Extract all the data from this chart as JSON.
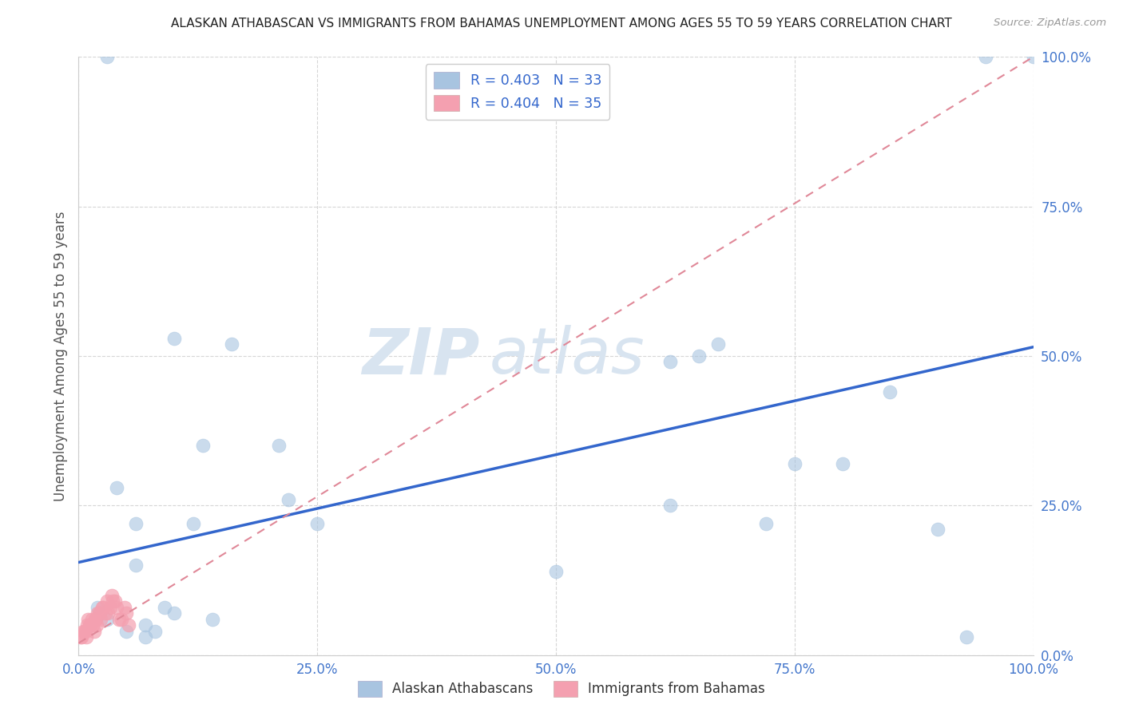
{
  "title": "ALASKAN ATHABASCAN VS IMMIGRANTS FROM BAHAMAS UNEMPLOYMENT AMONG AGES 55 TO 59 YEARS CORRELATION CHART",
  "source": "Source: ZipAtlas.com",
  "ylabel": "Unemployment Among Ages 55 to 59 years",
  "xlim": [
    0,
    1.0
  ],
  "ylim": [
    0,
    1.0
  ],
  "xticks": [
    0.0,
    0.25,
    0.5,
    0.75,
    1.0
  ],
  "yticks": [
    0.0,
    0.25,
    0.5,
    0.75,
    1.0
  ],
  "xticklabels": [
    "0.0%",
    "25.0%",
    "50.0%",
    "75.0%",
    "100.0%"
  ],
  "yticklabels": [
    "0.0%",
    "25.0%",
    "50.0%",
    "75.0%",
    "100.0%"
  ],
  "legend_label1": "Alaskan Athabascans",
  "legend_label2": "Immigrants from Bahamas",
  "R1": "0.403",
  "N1": "33",
  "R2": "0.404",
  "N2": "35",
  "blue_color": "#A8C4E0",
  "pink_color": "#F4A0B0",
  "line_blue": "#3366CC",
  "line_pink": "#E08898",
  "tick_color": "#4477CC",
  "watermark_color": "#D8E4F0",
  "blue_scatter_x": [
    0.04,
    0.1,
    0.02,
    0.07,
    0.13,
    0.06,
    0.03,
    0.05,
    0.16,
    0.06,
    0.09,
    0.12,
    0.21,
    0.25,
    0.22,
    0.5,
    0.62,
    0.62,
    0.65,
    0.72,
    0.8,
    0.85,
    0.9,
    0.93,
    0.95,
    0.14,
    0.03,
    0.07,
    0.08,
    0.1,
    0.67,
    0.75,
    1.0
  ],
  "blue_scatter_y": [
    0.28,
    0.53,
    0.08,
    0.05,
    0.35,
    0.22,
    0.06,
    0.04,
    0.52,
    0.15,
    0.08,
    0.22,
    0.35,
    0.22,
    0.26,
    0.14,
    0.25,
    0.49,
    0.5,
    0.22,
    0.32,
    0.44,
    0.21,
    0.03,
    1.0,
    0.06,
    1.0,
    0.03,
    0.04,
    0.07,
    0.52,
    0.32,
    1.0
  ],
  "pink_scatter_x": [
    0.005,
    0.01,
    0.015,
    0.02,
    0.025,
    0.008,
    0.012,
    0.018,
    0.022,
    0.03,
    0.035,
    0.04,
    0.045,
    0.05,
    0.003,
    0.006,
    0.009,
    0.014,
    0.016,
    0.019,
    0.023,
    0.028,
    0.033,
    0.038,
    0.042,
    0.048,
    0.052,
    0.002,
    0.007,
    0.011,
    0.017,
    0.021,
    0.026,
    0.031,
    0.036
  ],
  "pink_scatter_y": [
    0.04,
    0.06,
    0.05,
    0.07,
    0.08,
    0.03,
    0.05,
    0.06,
    0.07,
    0.09,
    0.1,
    0.08,
    0.06,
    0.07,
    0.03,
    0.04,
    0.05,
    0.06,
    0.04,
    0.05,
    0.06,
    0.07,
    0.08,
    0.09,
    0.06,
    0.08,
    0.05,
    0.03,
    0.04,
    0.05,
    0.06,
    0.07,
    0.08,
    0.07,
    0.09
  ],
  "blue_line_x": [
    0.0,
    1.0
  ],
  "blue_line_y": [
    0.155,
    0.515
  ],
  "pink_line_x": [
    0.0,
    1.0
  ],
  "pink_line_y": [
    0.02,
    1.0
  ]
}
